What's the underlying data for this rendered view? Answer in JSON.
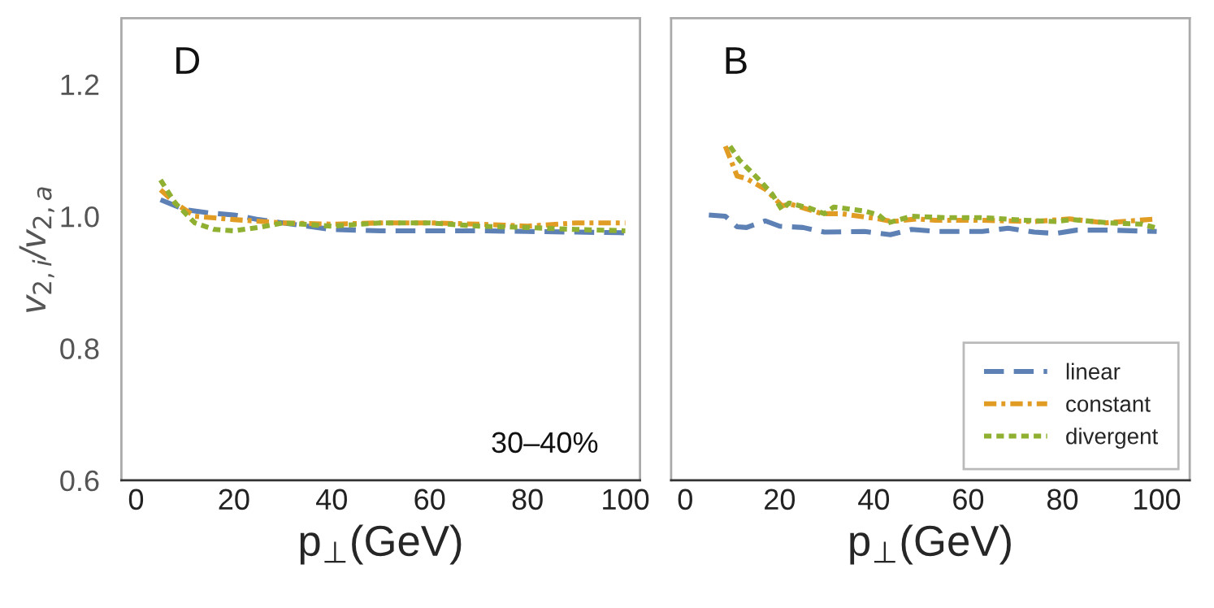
{
  "chart_data": [
    {
      "type": "line",
      "xlabel": "p$_{⊥}$(GeV)",
      "ylabel": "v$_{2,i}$/v$_{2,a}$",
      "annotations": [
        "D",
        "30–40%"
      ],
      "xlim": [
        -3,
        103
      ],
      "ylim": [
        0.6,
        1.3
      ],
      "xticks": [
        0,
        20,
        40,
        60,
        80,
        100
      ],
      "yticks": [
        0.6,
        0.8,
        {
          "value": 1,
          "label": "1.0"
        },
        1.2
      ],
      "grid": false,
      "series": [
        {
          "color": "#5e81b5",
          "line_style": "dashed",
          "x": [
            5,
            10,
            15,
            20,
            25,
            30,
            35,
            40,
            50,
            60,
            70,
            80,
            90,
            100
          ],
          "values": [
            1.025,
            1.01,
            1.005,
            1.002,
            0.995,
            0.99,
            0.985,
            0.98,
            0.978,
            0.978,
            0.978,
            0.977,
            0.976,
            0.975
          ]
        },
        {
          "color": "#e19c24",
          "line_style": "dashdot",
          "x": [
            5,
            8,
            12,
            20,
            30,
            40,
            50,
            60,
            70,
            80,
            90,
            100
          ],
          "values": [
            1.04,
            1.02,
            1.0,
            0.995,
            0.99,
            0.988,
            0.99,
            0.99,
            0.988,
            0.985,
            0.99,
            0.99
          ]
        },
        {
          "color": "#8fb031",
          "line_style": "dotted",
          "x": [
            5,
            8,
            12,
            16,
            20,
            25,
            30,
            40,
            50,
            60,
            70,
            80,
            90,
            100
          ],
          "values": [
            1.055,
            1.02,
            0.99,
            0.98,
            0.978,
            0.983,
            0.99,
            0.985,
            0.99,
            0.99,
            0.985,
            0.983,
            0.98,
            0.978
          ]
        }
      ]
    },
    {
      "type": "line",
      "xlabel": "p$_{⊥}$(GeV)",
      "annotations": [
        "B"
      ],
      "tick_labels": "x",
      "xlim": [
        -3,
        107
      ],
      "ylim": [
        0.6,
        1.3
      ],
      "xticks": [
        0,
        20,
        40,
        60,
        80,
        100
      ],
      "yticks": [
        0.6,
        0.8,
        1,
        1.2
      ],
      "legend": "bottom right",
      "grid": false,
      "series": [
        {
          "name": "linear",
          "color": "#5e81b5",
          "line_style": "dashed",
          "x": [
            5,
            8.5,
            11,
            13,
            17,
            20,
            25,
            29.5,
            38,
            43.5,
            48,
            53.5,
            63,
            68.5,
            74,
            78.5,
            83,
            90,
            100
          ],
          "values": [
            1.002,
            1.0,
            0.984,
            0.983,
            0.993,
            0.985,
            0.983,
            0.976,
            0.977,
            0.972,
            0.98,
            0.977,
            0.977,
            0.982,
            0.976,
            0.974,
            0.979,
            0.979,
            0.977
          ]
        },
        {
          "name": "constant",
          "color": "#e19c24",
          "line_style": "dashdot",
          "x": [
            8.5,
            11,
            13,
            17,
            20.5,
            22.5,
            29,
            33,
            41,
            44,
            49,
            53,
            63,
            74,
            81.5,
            89,
            100
          ],
          "values": [
            1.106,
            1.061,
            1.057,
            1.041,
            1.016,
            1.018,
            1.004,
            1.004,
            0.996,
            0.992,
            0.996,
            0.994,
            0.994,
            0.992,
            0.996,
            0.99,
            0.996
          ]
        },
        {
          "name": "divergent",
          "color": "#8fb031",
          "line_style": "dotted",
          "x": [
            9.5,
            11.5,
            16,
            18.5,
            20.5,
            22,
            26.5,
            29.5,
            31.5,
            38,
            41,
            43,
            48,
            55,
            63,
            72,
            78.5,
            82,
            90,
            97,
            100
          ],
          "values": [
            1.106,
            1.085,
            1.053,
            1.033,
            1.01,
            1.02,
            1.012,
            1.004,
            1.014,
            1.008,
            1.002,
            0.99,
            1.0,
            0.998,
            0.998,
            0.994,
            0.992,
            0.995,
            0.99,
            0.988,
            0.982
          ]
        }
      ]
    }
  ]
}
